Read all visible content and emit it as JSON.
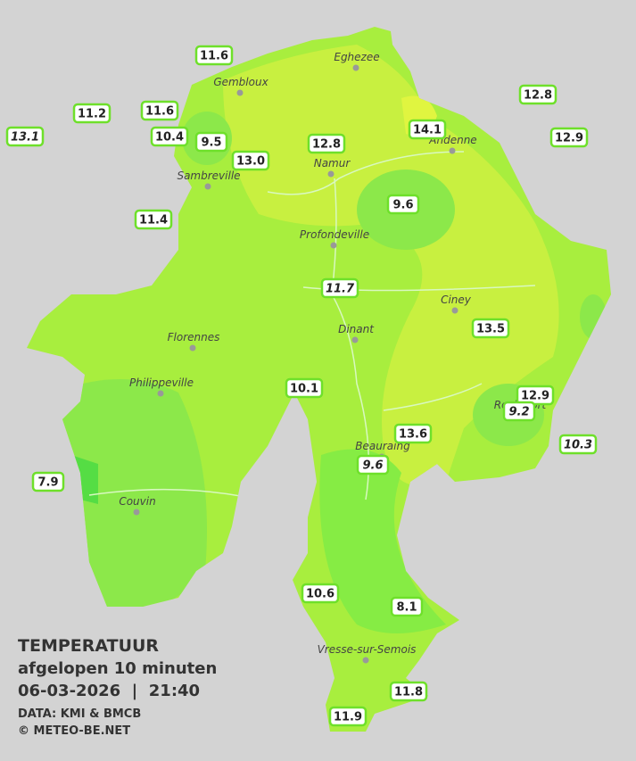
{
  "legend": {
    "title": "TEMPERATUUR",
    "subtitle": "afgelopen 10 minuten",
    "timestamp": "06-03-2026  |  21:40",
    "source": "DATA: KMI & BMCB",
    "copyright": "© METEO-BE.NET"
  },
  "cities": [
    "Eghezee",
    "Gembloux",
    "Andenne",
    "Namur",
    "Sambreville",
    "Profondeville",
    "Ciney",
    "Dinant",
    "Florennes",
    "Philippeville",
    "Beauraing",
    "Rochefort",
    "Couvin",
    "Vresse-sur-Semois"
  ],
  "stations": [
    {
      "label": "11.6",
      "italic": false
    },
    {
      "label": "11.2",
      "italic": false
    },
    {
      "label": "13.1",
      "italic": true
    },
    {
      "label": "11.6",
      "italic": false
    },
    {
      "label": "10.4",
      "italic": false
    },
    {
      "label": "9.5",
      "italic": false
    },
    {
      "label": "13.0",
      "italic": false
    },
    {
      "label": "12.8",
      "italic": false
    },
    {
      "label": "14.1",
      "italic": false
    },
    {
      "label": "12.8",
      "italic": false
    },
    {
      "label": "12.9",
      "italic": false
    },
    {
      "label": "11.4",
      "italic": false
    },
    {
      "label": "9.6",
      "italic": false
    },
    {
      "label": "11.7",
      "italic": true
    },
    {
      "label": "13.5",
      "italic": false
    },
    {
      "label": "10.1",
      "italic": false
    },
    {
      "label": "12.9",
      "italic": false
    },
    {
      "label": "9.2",
      "italic": true
    },
    {
      "label": "13.6",
      "italic": false
    },
    {
      "label": "10.3",
      "italic": true
    },
    {
      "label": "9.6",
      "italic": true
    },
    {
      "label": "7.9",
      "italic": false
    },
    {
      "label": "10.6",
      "italic": false
    },
    {
      "label": "8.1",
      "italic": false
    },
    {
      "label": "11.8",
      "italic": false
    },
    {
      "label": "11.9",
      "italic": false
    }
  ]
}
